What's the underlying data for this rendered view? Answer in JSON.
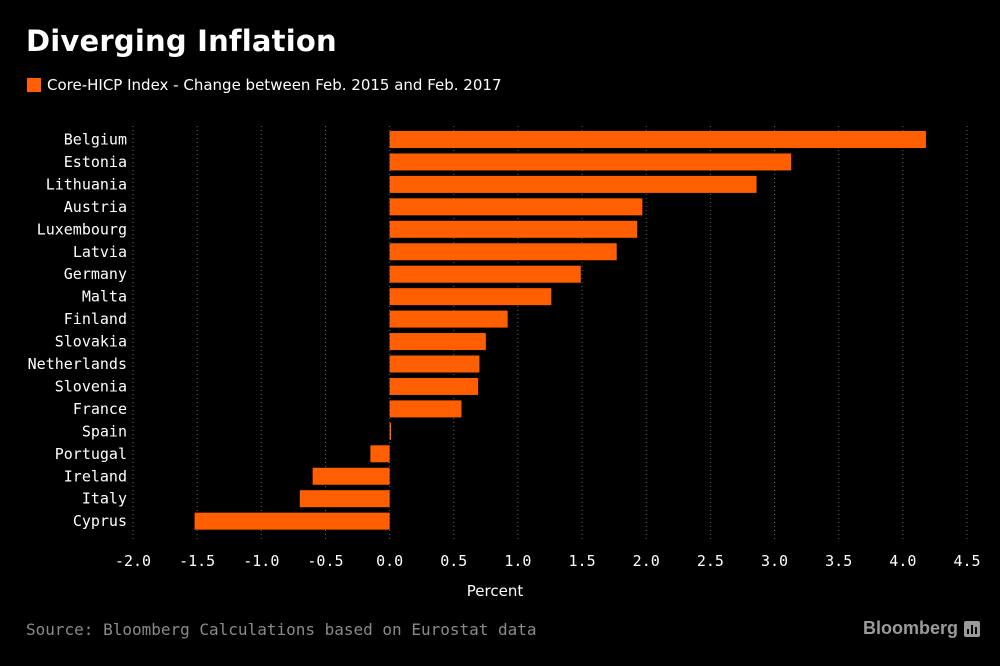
{
  "title": "Diverging Inflation",
  "legend_label": "Core-HICP Index - Change between Feb. 2015 and Feb. 2017",
  "source": "Source: Bloomberg Calculations based on Eurostat data",
  "brand": "Bloomberg",
  "colors": {
    "bar": "#ff5f00",
    "grid": "#666666",
    "background": "#000000"
  },
  "chart_data": {
    "type": "bar",
    "orientation": "horizontal",
    "title": "Diverging Inflation",
    "xlabel": "Percent",
    "ylabel": "",
    "xlim": [
      -2.0,
      4.5
    ],
    "xticks": [
      "-2.0",
      "-1.5",
      "-1.0",
      "-0.5",
      "0.0",
      "0.5",
      "1.0",
      "1.5",
      "2.0",
      "2.5",
      "3.0",
      "3.5",
      "4.0",
      "4.5"
    ],
    "grid": "vertical dotted",
    "legend_position": "top-left",
    "series": [
      {
        "name": "Core-HICP Index - Change between Feb. 2015 and Feb. 2017"
      }
    ],
    "categories": [
      "Belgium",
      "Estonia",
      "Lithuania",
      "Austria",
      "Luxembourg",
      "Latvia",
      "Germany",
      "Malta",
      "Finland",
      "Slovakia",
      "Netherlands",
      "Slovenia",
      "France",
      "Spain",
      "Portugal",
      "Ireland",
      "Italy",
      "Cyprus"
    ],
    "values": [
      4.18,
      3.13,
      2.86,
      1.97,
      1.93,
      1.77,
      1.49,
      1.26,
      0.92,
      0.75,
      0.7,
      0.69,
      0.56,
      0.01,
      -0.15,
      -0.6,
      -0.7,
      -1.52
    ]
  }
}
